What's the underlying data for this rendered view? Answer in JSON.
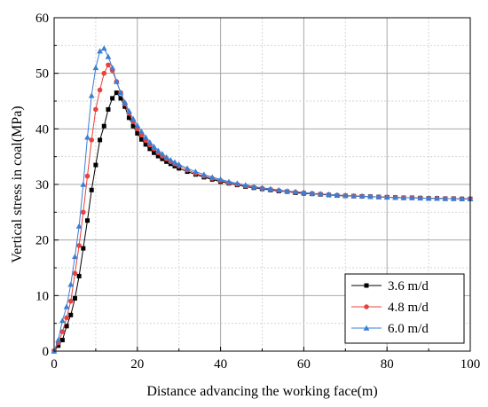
{
  "chart_data": {
    "type": "line",
    "xlabel": "Distance advancing the working face(m)",
    "ylabel": "Vertical stress in coal(MPa)",
    "xlim": [
      0,
      100
    ],
    "ylim": [
      0,
      60
    ],
    "xticks": [
      0,
      20,
      40,
      60,
      80,
      100
    ],
    "yticks": [
      0,
      10,
      20,
      30,
      40,
      50,
      60
    ],
    "grid": true,
    "legend_position": "bottom-right",
    "series": [
      {
        "name": "3.6 m/d",
        "color": "#000000",
        "marker": "square",
        "x": [
          0,
          1,
          2,
          3,
          4,
          5,
          6,
          7,
          8,
          9,
          10,
          11,
          12,
          13,
          14,
          15,
          16,
          17,
          18,
          19,
          20,
          21,
          22,
          23,
          24,
          25,
          26,
          27,
          28,
          29,
          30,
          32,
          34,
          36,
          38,
          40,
          42,
          44,
          46,
          48,
          50,
          52,
          54,
          56,
          58,
          60,
          62,
          64,
          66,
          68,
          70,
          72,
          74,
          76,
          78,
          80,
          82,
          84,
          86,
          88,
          90,
          92,
          94,
          96,
          98,
          100
        ],
        "y": [
          0,
          1.0,
          2.0,
          4.5,
          6.5,
          9.5,
          13.5,
          18.5,
          23.5,
          29.0,
          33.5,
          38.0,
          40.5,
          43.5,
          45.5,
          46.5,
          45.5,
          44.0,
          42.0,
          40.5,
          39.2,
          38.1,
          37.2,
          36.4,
          35.7,
          35.1,
          34.6,
          34.1,
          33.7,
          33.3,
          32.9,
          32.3,
          31.8,
          31.3,
          30.9,
          30.5,
          30.2,
          29.9,
          29.6,
          29.4,
          29.2,
          29.0,
          28.8,
          28.7,
          28.5,
          28.4,
          28.3,
          28.2,
          28.1,
          28.0,
          27.95,
          27.9,
          27.85,
          27.8,
          27.75,
          27.7,
          27.65,
          27.6,
          27.6,
          27.55,
          27.5,
          27.5,
          27.45,
          27.45,
          27.4,
          27.4
        ]
      },
      {
        "name": "4.8 m/d",
        "color": "#e8423c",
        "marker": "circle",
        "x": [
          0,
          1,
          2,
          3,
          4,
          5,
          6,
          7,
          8,
          9,
          10,
          11,
          12,
          13,
          14,
          15,
          16,
          17,
          18,
          19,
          20,
          21,
          22,
          23,
          24,
          25,
          26,
          27,
          28,
          29,
          30,
          32,
          34,
          36,
          38,
          40,
          42,
          44,
          46,
          48,
          50,
          52,
          54,
          56,
          58,
          60,
          62,
          64,
          66,
          68,
          70,
          72,
          74,
          76,
          78,
          80,
          82,
          84,
          86,
          88,
          90,
          92,
          94,
          96,
          98,
          100
        ],
        "y": [
          0,
          1.5,
          3.5,
          6.0,
          9.0,
          14.0,
          19.0,
          25.0,
          31.5,
          38.0,
          43.5,
          47.0,
          50.0,
          51.5,
          50.5,
          48.5,
          46.5,
          44.5,
          42.8,
          41.3,
          40.0,
          38.9,
          37.9,
          37.1,
          36.4,
          35.7,
          35.1,
          34.6,
          34.1,
          33.7,
          33.3,
          32.6,
          32.0,
          31.5,
          31.1,
          30.7,
          30.3,
          30.0,
          29.7,
          29.5,
          29.3,
          29.1,
          28.9,
          28.7,
          28.6,
          28.5,
          28.35,
          28.25,
          28.15,
          28.05,
          28.0,
          27.9,
          27.85,
          27.8,
          27.75,
          27.7,
          27.65,
          27.6,
          27.6,
          27.55,
          27.5,
          27.5,
          27.45,
          27.45,
          27.4,
          27.4
        ]
      },
      {
        "name": "6.0 m/d",
        "color": "#3a7fd4",
        "marker": "triangle",
        "x": [
          0,
          1,
          2,
          3,
          4,
          5,
          6,
          7,
          8,
          9,
          10,
          11,
          12,
          13,
          14,
          15,
          16,
          17,
          18,
          19,
          20,
          21,
          22,
          23,
          24,
          25,
          26,
          27,
          28,
          29,
          30,
          32,
          34,
          36,
          38,
          40,
          42,
          44,
          46,
          48,
          50,
          52,
          54,
          56,
          58,
          60,
          62,
          64,
          66,
          68,
          70,
          72,
          74,
          76,
          78,
          80,
          82,
          84,
          86,
          88,
          90,
          92,
          94,
          96,
          98,
          100
        ],
        "y": [
          0,
          2.0,
          5.5,
          8.0,
          12.0,
          17.0,
          22.5,
          30.0,
          38.5,
          46.0,
          51.0,
          54.0,
          54.5,
          53.0,
          51.0,
          48.5,
          46.5,
          44.8,
          43.2,
          41.8,
          40.6,
          39.5,
          38.5,
          37.6,
          36.8,
          36.1,
          35.5,
          34.9,
          34.4,
          34.0,
          33.6,
          32.9,
          32.3,
          31.8,
          31.3,
          30.9,
          30.5,
          30.2,
          29.9,
          29.6,
          29.4,
          29.2,
          29.0,
          28.8,
          28.7,
          28.55,
          28.4,
          28.3,
          28.2,
          28.1,
          28.0,
          27.95,
          27.9,
          27.8,
          27.75,
          27.7,
          27.65,
          27.6,
          27.6,
          27.55,
          27.5,
          27.5,
          27.45,
          27.45,
          27.4,
          27.4
        ]
      }
    ]
  }
}
